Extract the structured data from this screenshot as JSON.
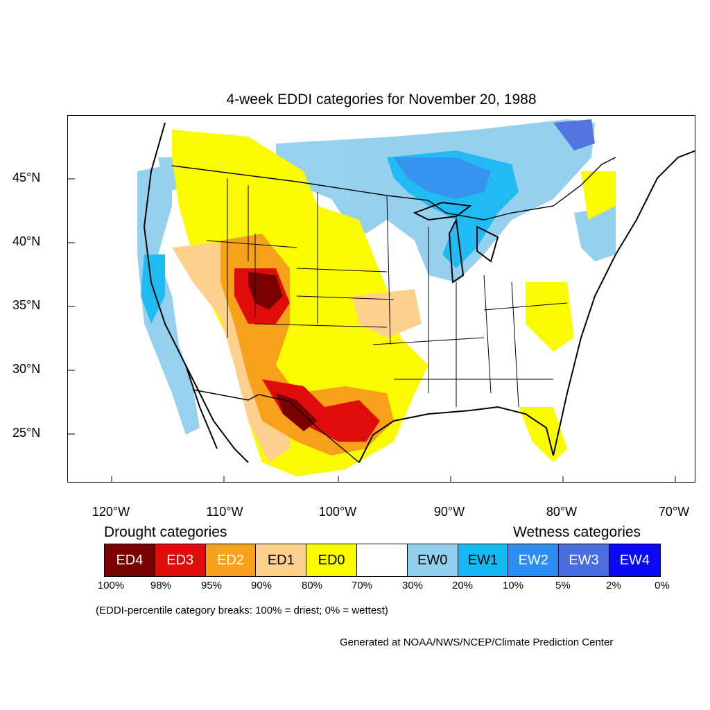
{
  "title": "4-week EDDI categories for November 20, 1988",
  "lat_labels": [
    "45°N",
    "40°N",
    "35°N",
    "30°N",
    "25°N"
  ],
  "lon_labels": [
    "120°W",
    "110°W",
    "100°W",
    "90°W",
    "80°W",
    "70°W"
  ],
  "legend": {
    "drought_title": "Drought categories",
    "wetness_title": "Wetness categories",
    "categories": [
      {
        "label": "ED4",
        "color": "#7a0000",
        "text_color": "#ffffff"
      },
      {
        "label": "ED3",
        "color": "#e00b0b",
        "text_color": "#ffffff"
      },
      {
        "label": "ED2",
        "color": "#f7a01a",
        "text_color": "#ffffff"
      },
      {
        "label": "ED1",
        "color": "#fdd18d",
        "text_color": "#000000"
      },
      {
        "label": "ED0",
        "color": "#fbfb00",
        "text_color": "#000000"
      },
      {
        "label": "",
        "color": "#ffffff",
        "text_color": "#000000"
      },
      {
        "label": "EW0",
        "color": "#90cfee",
        "text_color": "#000000"
      },
      {
        "label": "EW1",
        "color": "#14b8f2",
        "text_color": "#000000"
      },
      {
        "label": "EW2",
        "color": "#2c8ef0",
        "text_color": "#ffffff"
      },
      {
        "label": "EW3",
        "color": "#4a6ee0",
        "text_color": "#ffffff"
      },
      {
        "label": "EW4",
        "color": "#0a0af5",
        "text_color": "#ffffff"
      }
    ],
    "breaks": [
      "100%",
      "98%",
      "95%",
      "90%",
      "80%",
      "70%",
      "30%",
      "20%",
      "10%",
      "5%",
      "2%",
      "0%"
    ]
  },
  "note": "(EDDI-percentile category breaks: 100% = driest; 0% = wettest)",
  "credit": "Generated at NOAA/NWS/NCEP/Climate Prediction Center"
}
